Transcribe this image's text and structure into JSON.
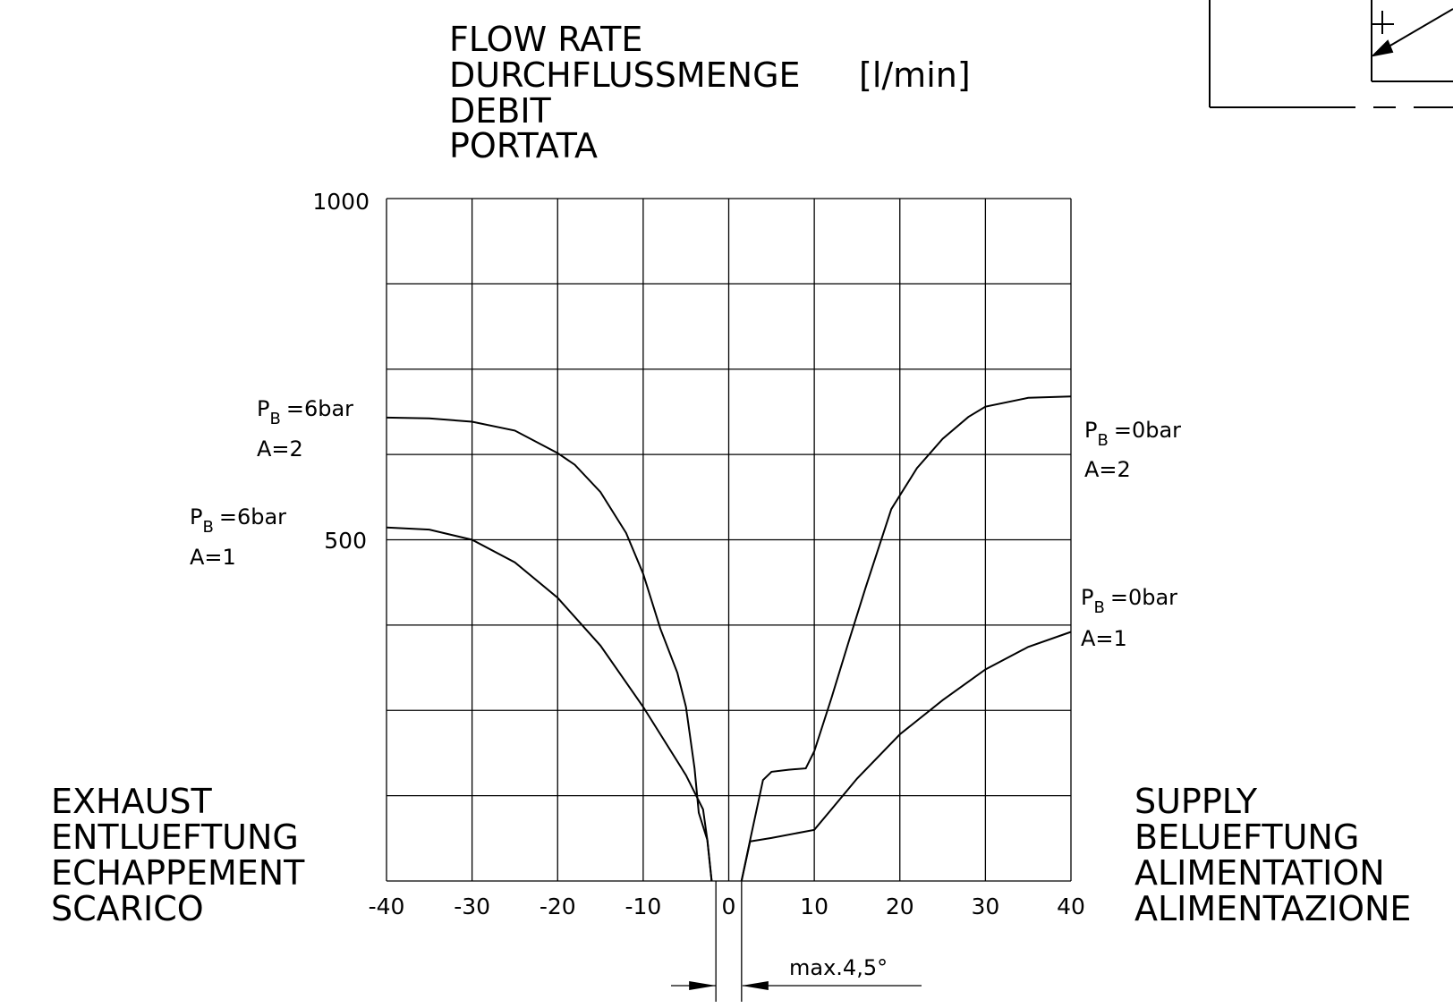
{
  "chart_data": {
    "type": "line",
    "y_title_lines": [
      "FLOW RATE",
      "DURCHFLUSSMENGE",
      "DEBIT",
      "PORTATA"
    ],
    "y_unit": "[l/min]",
    "left_label_lines": [
      "EXHAUST",
      "ENTLUEFTUNG",
      "ECHAPPEMENT",
      "SCARICO"
    ],
    "right_label_lines": [
      "SUPPLY",
      "BELUEFTUNG",
      "ALIMENTATION",
      "ALIMENTAZIONE"
    ],
    "xlim": [
      -40,
      40
    ],
    "ylim": [
      0,
      1000
    ],
    "x_ticks": [
      "-40",
      "-30",
      "-20",
      "-10",
      "0",
      "10",
      "20",
      "30",
      "40"
    ],
    "y_ticks": [
      "1000",
      "500"
    ],
    "grid": true,
    "annotation": "max.4,5°",
    "series": [
      {
        "name": "PB=6bar A=2",
        "label_main": "P",
        "label_sub": "B",
        "label_value": "=6bar",
        "label_a": "A=2",
        "points": [
          [
            -40,
            679
          ],
          [
            -35,
            678
          ],
          [
            -30,
            673
          ],
          [
            -25,
            660
          ],
          [
            -20,
            627
          ],
          [
            -18,
            610
          ],
          [
            -15,
            570
          ],
          [
            -12,
            510
          ],
          [
            -10,
            450
          ],
          [
            -8,
            370
          ],
          [
            -6,
            305
          ],
          [
            -5,
            255
          ],
          [
            -4,
            165
          ],
          [
            -3.5,
            100
          ],
          [
            -2.5,
            60
          ],
          [
            -2,
            0
          ]
        ]
      },
      {
        "name": "PB=6bar A=1",
        "label_main": "P",
        "label_sub": "B",
        "label_value": "=6bar",
        "label_a": "A=1",
        "points": [
          [
            -40,
            518
          ],
          [
            -35,
            515
          ],
          [
            -30,
            500
          ],
          [
            -25,
            467
          ],
          [
            -20,
            415
          ],
          [
            -15,
            345
          ],
          [
            -10,
            255
          ],
          [
            -5,
            155
          ],
          [
            -3,
            105
          ],
          [
            -2.5,
            60
          ],
          [
            -2,
            0
          ]
        ]
      },
      {
        "name": "PB=0bar A=2",
        "label_main": "P",
        "label_sub": "B",
        "label_value": "=0bar",
        "label_a": "A=2",
        "points": [
          [
            1.5,
            0
          ],
          [
            2.5,
            60
          ],
          [
            4,
            148
          ],
          [
            5,
            160
          ],
          [
            7,
            163
          ],
          [
            9,
            165
          ],
          [
            10,
            190
          ],
          [
            12,
            268
          ],
          [
            14,
            350
          ],
          [
            16,
            430
          ],
          [
            19,
            545
          ],
          [
            22,
            605
          ],
          [
            25,
            648
          ],
          [
            28,
            680
          ],
          [
            30,
            695
          ],
          [
            35,
            708
          ],
          [
            40,
            710
          ]
        ]
      },
      {
        "name": "PB=0bar A=1",
        "label_main": "P",
        "label_sub": "B",
        "label_value": "=0bar",
        "label_a": "A=1",
        "points": [
          [
            1.5,
            0
          ],
          [
            2.5,
            58
          ],
          [
            5,
            63
          ],
          [
            10,
            75
          ],
          [
            12,
            105
          ],
          [
            15,
            150
          ],
          [
            20,
            215
          ],
          [
            25,
            265
          ],
          [
            30,
            310
          ],
          [
            35,
            343
          ],
          [
            40,
            365
          ]
        ]
      }
    ]
  }
}
